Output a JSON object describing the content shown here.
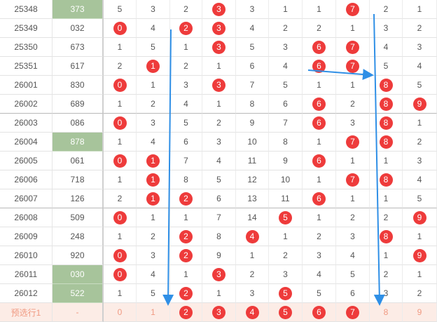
{
  "rows": [
    {
      "issue": "25348",
      "number": "373",
      "highlight": true,
      "cells": [
        {
          "v": "5"
        },
        {
          "v": "3"
        },
        {
          "v": "2"
        },
        {
          "v": "3",
          "b": true
        },
        {
          "v": "3"
        },
        {
          "v": "1"
        },
        {
          "v": "1"
        },
        {
          "v": "7",
          "b": true
        },
        {
          "v": "2"
        },
        {
          "v": "1"
        }
      ]
    },
    {
      "issue": "25349",
      "number": "032",
      "cells": [
        {
          "v": "0",
          "b": true
        },
        {
          "v": "4"
        },
        {
          "v": "2",
          "b": true
        },
        {
          "v": "3",
          "b": true
        },
        {
          "v": "4"
        },
        {
          "v": "2"
        },
        {
          "v": "2"
        },
        {
          "v": "1"
        },
        {
          "v": "3"
        },
        {
          "v": "2"
        }
      ]
    },
    {
      "issue": "25350",
      "number": "673",
      "cells": [
        {
          "v": "1"
        },
        {
          "v": "5"
        },
        {
          "v": "1"
        },
        {
          "v": "3",
          "b": true
        },
        {
          "v": "5"
        },
        {
          "v": "3"
        },
        {
          "v": "6",
          "b": true
        },
        {
          "v": "7",
          "b": true
        },
        {
          "v": "4"
        },
        {
          "v": "3"
        }
      ]
    },
    {
      "issue": "25351",
      "number": "617",
      "cells": [
        {
          "v": "2"
        },
        {
          "v": "1",
          "b": true
        },
        {
          "v": "2"
        },
        {
          "v": "1"
        },
        {
          "v": "6"
        },
        {
          "v": "4"
        },
        {
          "v": "6",
          "b": true
        },
        {
          "v": "7",
          "b": true
        },
        {
          "v": "5"
        },
        {
          "v": "4"
        }
      ]
    },
    {
      "issue": "26001",
      "number": "830",
      "cells": [
        {
          "v": "0",
          "b": true
        },
        {
          "v": "1"
        },
        {
          "v": "3"
        },
        {
          "v": "3",
          "b": true
        },
        {
          "v": "7"
        },
        {
          "v": "5"
        },
        {
          "v": "1"
        },
        {
          "v": "1"
        },
        {
          "v": "8",
          "b": true
        },
        {
          "v": "5"
        }
      ]
    },
    {
      "issue": "26002",
      "number": "689",
      "cells": [
        {
          "v": "1"
        },
        {
          "v": "2"
        },
        {
          "v": "4"
        },
        {
          "v": "1"
        },
        {
          "v": "8"
        },
        {
          "v": "6"
        },
        {
          "v": "6",
          "b": true
        },
        {
          "v": "2"
        },
        {
          "v": "8",
          "b": true
        },
        {
          "v": "9",
          "b": true
        }
      ]
    },
    {
      "issue": "26003",
      "number": "086",
      "cells": [
        {
          "v": "0",
          "b": true
        },
        {
          "v": "3"
        },
        {
          "v": "5"
        },
        {
          "v": "2"
        },
        {
          "v": "9"
        },
        {
          "v": "7"
        },
        {
          "v": "6",
          "b": true
        },
        {
          "v": "3"
        },
        {
          "v": "8",
          "b": true
        },
        {
          "v": "1"
        }
      ]
    },
    {
      "issue": "26004",
      "number": "878",
      "highlight": true,
      "cells": [
        {
          "v": "1"
        },
        {
          "v": "4"
        },
        {
          "v": "6"
        },
        {
          "v": "3"
        },
        {
          "v": "10"
        },
        {
          "v": "8"
        },
        {
          "v": "1"
        },
        {
          "v": "7",
          "b": true
        },
        {
          "v": "8",
          "b": true
        },
        {
          "v": "2"
        }
      ]
    },
    {
      "issue": "26005",
      "number": "061",
      "cells": [
        {
          "v": "0",
          "b": true
        },
        {
          "v": "1",
          "b": true
        },
        {
          "v": "7"
        },
        {
          "v": "4"
        },
        {
          "v": "11"
        },
        {
          "v": "9"
        },
        {
          "v": "6",
          "b": true
        },
        {
          "v": "1"
        },
        {
          "v": "1"
        },
        {
          "v": "3"
        }
      ]
    },
    {
      "issue": "26006",
      "number": "718",
      "cells": [
        {
          "v": "1"
        },
        {
          "v": "1",
          "b": true
        },
        {
          "v": "8"
        },
        {
          "v": "5"
        },
        {
          "v": "12"
        },
        {
          "v": "10"
        },
        {
          "v": "1"
        },
        {
          "v": "7",
          "b": true
        },
        {
          "v": "8",
          "b": true
        },
        {
          "v": "4"
        }
      ]
    },
    {
      "issue": "26007",
      "number": "126",
      "cells": [
        {
          "v": "2"
        },
        {
          "v": "1",
          "b": true
        },
        {
          "v": "2",
          "b": true
        },
        {
          "v": "6"
        },
        {
          "v": "13"
        },
        {
          "v": "11"
        },
        {
          "v": "6",
          "b": true
        },
        {
          "v": "1"
        },
        {
          "v": "1"
        },
        {
          "v": "5"
        }
      ]
    },
    {
      "issue": "26008",
      "number": "509",
      "cells": [
        {
          "v": "0",
          "b": true
        },
        {
          "v": "1"
        },
        {
          "v": "1"
        },
        {
          "v": "7"
        },
        {
          "v": "14"
        },
        {
          "v": "5",
          "b": true
        },
        {
          "v": "1"
        },
        {
          "v": "2"
        },
        {
          "v": "2"
        },
        {
          "v": "9",
          "b": true
        }
      ]
    },
    {
      "issue": "26009",
      "number": "248",
      "cells": [
        {
          "v": "1"
        },
        {
          "v": "2"
        },
        {
          "v": "2",
          "b": true
        },
        {
          "v": "8"
        },
        {
          "v": "4",
          "b": true
        },
        {
          "v": "1"
        },
        {
          "v": "2"
        },
        {
          "v": "3"
        },
        {
          "v": "8",
          "b": true
        },
        {
          "v": "1"
        }
      ]
    },
    {
      "issue": "26010",
      "number": "920",
      "cells": [
        {
          "v": "0",
          "b": true
        },
        {
          "v": "3"
        },
        {
          "v": "2",
          "b": true
        },
        {
          "v": "9"
        },
        {
          "v": "1"
        },
        {
          "v": "2"
        },
        {
          "v": "3"
        },
        {
          "v": "4"
        },
        {
          "v": "1"
        },
        {
          "v": "9",
          "b": true
        }
      ]
    },
    {
      "issue": "26011",
      "number": "030",
      "highlight": true,
      "cells": [
        {
          "v": "0",
          "b": true
        },
        {
          "v": "4"
        },
        {
          "v": "1"
        },
        {
          "v": "3",
          "b": true
        },
        {
          "v": "2"
        },
        {
          "v": "3"
        },
        {
          "v": "4"
        },
        {
          "v": "5"
        },
        {
          "v": "2"
        },
        {
          "v": "1"
        }
      ]
    },
    {
      "issue": "26012",
      "number": "522",
      "highlight": true,
      "cells": [
        {
          "v": "1"
        },
        {
          "v": "5"
        },
        {
          "v": "2",
          "b": true
        },
        {
          "v": "1"
        },
        {
          "v": "3"
        },
        {
          "v": "5",
          "b": true
        },
        {
          "v": "5"
        },
        {
          "v": "6"
        },
        {
          "v": "3"
        },
        {
          "v": "2"
        }
      ]
    }
  ],
  "preselect": {
    "label": "预选行1",
    "number": "-",
    "cells": [
      {
        "v": "0"
      },
      {
        "v": "1"
      },
      {
        "v": "2",
        "b": true
      },
      {
        "v": "3",
        "b": true
      },
      {
        "v": "4",
        "b": true
      },
      {
        "v": "5",
        "b": true
      },
      {
        "v": "6",
        "b": true
      },
      {
        "v": "7",
        "b": true
      },
      {
        "v": "8"
      },
      {
        "v": "9"
      }
    ]
  },
  "colors": {
    "ball": "#ee3b3b",
    "highlight": "#a7c49b",
    "arrow": "#2f8fe6",
    "preselect_bg": "#fcece6"
  }
}
